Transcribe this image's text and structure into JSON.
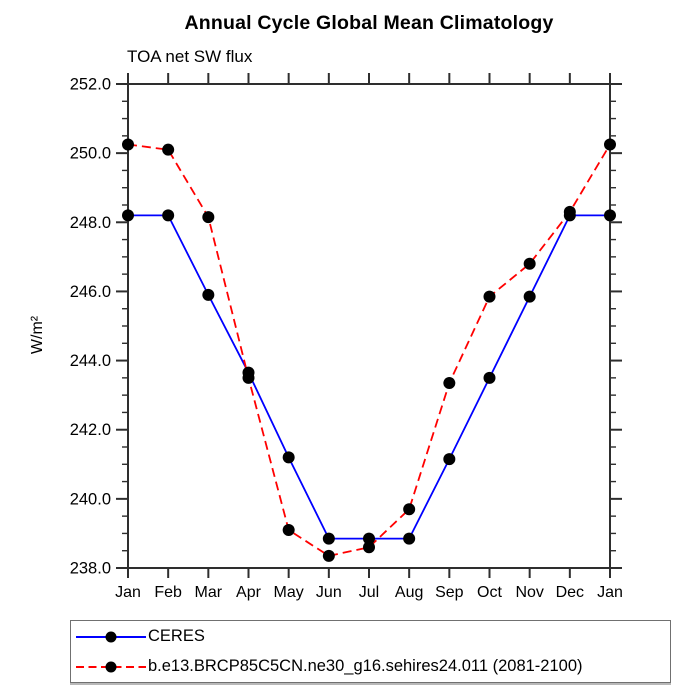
{
  "title": "Annual Cycle Global Mean Climatology",
  "subtitle": "TOA net SW flux",
  "ylabel": "W/m²",
  "chart_data": {
    "type": "line",
    "title": "Annual Cycle Global Mean Climatology",
    "subtitle": "TOA net SW flux",
    "ylabel": "W/m²",
    "xlabel": "",
    "categories": [
      "Jan",
      "Feb",
      "Mar",
      "Apr",
      "May",
      "Jun",
      "Jul",
      "Aug",
      "Sep",
      "Oct",
      "Nov",
      "Dec",
      "Jan"
    ],
    "series": [
      {
        "name": "CERES",
        "color": "#0000ff",
        "line_style": "solid",
        "marker": "black-dot",
        "values": [
          248.2,
          248.2,
          245.9,
          243.65,
          241.2,
          238.85,
          238.85,
          238.85,
          241.15,
          243.5,
          245.85,
          248.2,
          248.2
        ]
      },
      {
        "name": "b.e13.BRCP85C5CN.ne30_g16.sehires24.011 (2081-2100)",
        "color": "#ff0000",
        "line_style": "dashed",
        "marker": "black-dot",
        "values": [
          250.25,
          250.1,
          248.15,
          243.5,
          239.1,
          238.35,
          238.6,
          239.7,
          243.35,
          245.85,
          246.8,
          248.3,
          250.25
        ]
      }
    ],
    "ylim": [
      238.0,
      252.0
    ],
    "y_major_step": 2.0,
    "y_minor_step": 0.5,
    "y_tick_label_format": "one-decimal",
    "grid": false,
    "legend_position": "bottom-left-box",
    "axis_color": "#2e2e2e",
    "marker_color": "#000000"
  }
}
